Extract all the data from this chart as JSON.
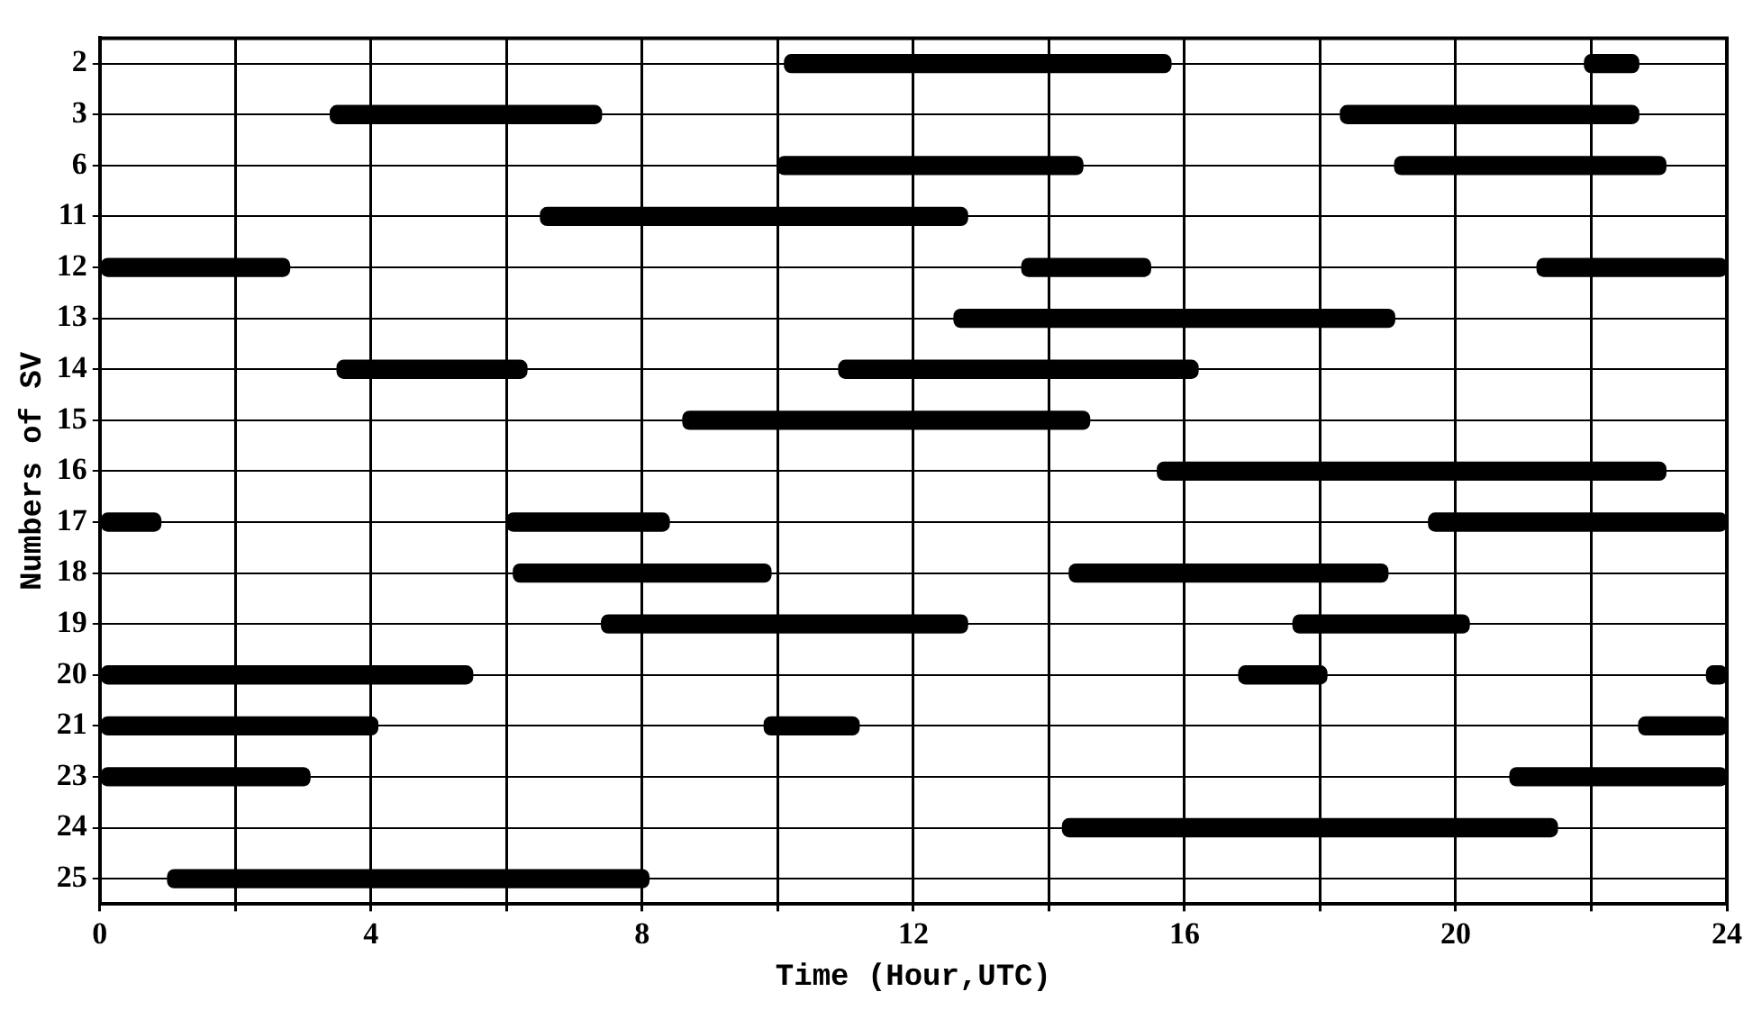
{
  "chart_data": {
    "type": "bar",
    "orientation": "horizontal",
    "xlabel": "Time (Hour,UTC)",
    "ylabel": "Numbers of SV",
    "categories": [
      "2",
      "3",
      "6",
      "11",
      "12",
      "13",
      "14",
      "15",
      "16",
      "17",
      "18",
      "19",
      "20",
      "21",
      "23",
      "24",
      "25"
    ],
    "series": [
      {
        "color": "#000000",
        "base": [
          10.1,
          3.4,
          10.0,
          6.5,
          0,
          12.6,
          3.5,
          8.6,
          15.6,
          0,
          6.1,
          7.4,
          0,
          0,
          0,
          14.2,
          1.0
        ],
        "values": [
          5.7,
          4.0,
          4.5,
          6.3,
          2.8,
          6.5,
          2.8,
          6.0,
          7.5,
          0.9,
          3.8,
          5.4,
          5.5,
          4.1,
          3.1,
          7.3,
          7.1
        ]
      },
      {
        "color": "#000000",
        "base": [
          21.9,
          18.3,
          19.1,
          null,
          13.6,
          null,
          10.9,
          null,
          null,
          6.0,
          14.3,
          17.6,
          16.8,
          9.8,
          20.8,
          null,
          null
        ],
        "values": [
          0.8,
          4.4,
          4.0,
          null,
          1.9,
          null,
          5.3,
          null,
          null,
          2.4,
          4.7,
          2.6,
          1.3,
          1.4,
          3.2,
          null,
          null
        ]
      },
      {
        "color": "#000000",
        "base": [
          null,
          null,
          null,
          null,
          21.2,
          null,
          null,
          null,
          null,
          19.6,
          null,
          null,
          23.7,
          22.7,
          null,
          null,
          null
        ],
        "values": [
          null,
          null,
          null,
          null,
          2.8,
          null,
          null,
          null,
          null,
          4.4,
          null,
          null,
          0.3,
          1.3,
          null,
          null,
          null
        ]
      }
    ],
    "xlim": [
      0,
      24
    ],
    "xticks": [
      0,
      {
        "value": 2,
        "label": null
      },
      4,
      {
        "value": 6,
        "label": null
      },
      8,
      {
        "value": 10,
        "label": null
      },
      12,
      {
        "value": 14,
        "label": null
      },
      16,
      {
        "value": 18,
        "label": null
      },
      20,
      {
        "value": 22,
        "label": null
      },
      24
    ],
    "grid": true,
    "legend": false
  }
}
